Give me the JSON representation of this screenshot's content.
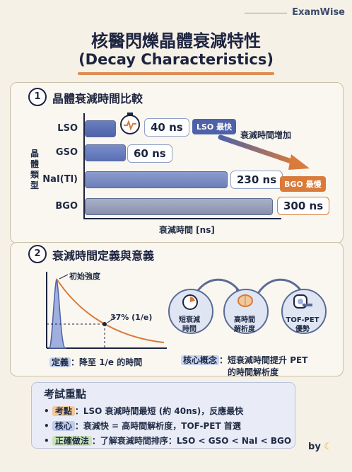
{
  "brand": "ExamWise",
  "title": "核醫閃爍晶體衰減特性",
  "subtitle": "(Decay Characteristics)",
  "section1": {
    "num": "1",
    "title": "晶體衰減時間比較",
    "y_label": "晶體類型",
    "x_label": "衰減時間 [ns]",
    "trend_label": "衰減時間增加",
    "tag_fast": "LSO 最快",
    "tag_slow": "BGO 最慢",
    "rows": [
      {
        "name": "LSO",
        "value": "40 ns"
      },
      {
        "name": "GSO",
        "value": "60 ns"
      },
      {
        "name": "NaI(Tl)",
        "value": "230 ns"
      },
      {
        "name": "BGO",
        "value": "300 ns"
      }
    ]
  },
  "section2": {
    "num": "2",
    "title": "衰減時間定義與意義",
    "initial_label": "初始強度",
    "percent_label": "37% (1/e)",
    "definition_key": "定義",
    "definition_text": "：降至 1/e 的時間",
    "flow": [
      {
        "label": "短衰減\n時間"
      },
      {
        "label": "高時間\n解析度"
      },
      {
        "label": "TOF-PET\n優勢"
      }
    ],
    "concept_key": "核心概念",
    "concept_text": "：短衰減時間提升 PET",
    "concept_text2": "的時間解析度"
  },
  "exam": {
    "title": "考試重點",
    "items": [
      {
        "key": "考點",
        "text": "：LSO 衰減時間最短 (約 40ns)，反應最快"
      },
      {
        "key": "核心",
        "text": "：衰減快 = 高時間解析度，TOF-PET 首選"
      },
      {
        "key": "正確做法",
        "text": "：了解衰減時間排序：LSO < GSO < NaI < BGO"
      }
    ]
  },
  "footer_by": "by",
  "chart_data": {
    "type": "bar",
    "categories": [
      "LSO",
      "GSO",
      "NaI(Tl)",
      "BGO"
    ],
    "values": [
      40,
      60,
      230,
      300
    ],
    "xlabel": "衰減時間 [ns]",
    "ylabel": "晶體類型"
  },
  "colors": {
    "accent_orange": "#d97b3a",
    "bar_blue": "#5a70b4",
    "navy": "#1d2440"
  }
}
